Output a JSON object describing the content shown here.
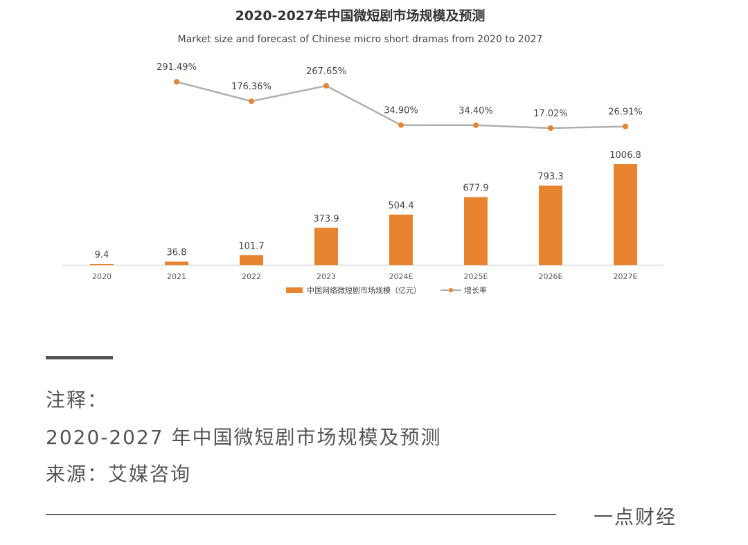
{
  "chart_data": {
    "type": "bar+line",
    "title": "2020-2027年中国微短剧市场规模及预测",
    "subtitle": "Market size and forecast of Chinese micro short dramas from 2020 to 2027",
    "categories": [
      "2020",
      "2021",
      "2022",
      "2023",
      "2024E",
      "2025E",
      "2026E",
      "2027E"
    ],
    "series": [
      {
        "name": "中国网络微短剧市场规模（亿元）",
        "type": "bar",
        "color": "#E8832F",
        "values": [
          9.4,
          36.8,
          101.7,
          373.9,
          504.4,
          677.9,
          793.3,
          1006.8
        ],
        "labels": [
          "9.4",
          "36.8",
          "101.7",
          "373.9",
          "504.4",
          "677.9",
          "793.3",
          "1006.8"
        ]
      },
      {
        "name": "增长率",
        "type": "line",
        "color": "#AFAFAF",
        "marker_color": "#E8832F",
        "values": [
          null,
          291.49,
          176.36,
          267.65,
          34.9,
          34.4,
          17.02,
          26.91
        ],
        "labels": [
          "",
          "291.49%",
          "176.36%",
          "267.65%",
          "34.90%",
          "34.40%",
          "17.02%",
          "26.91%"
        ]
      }
    ],
    "legend": "bottom-center",
    "grid": false
  },
  "notes": {
    "heading": "注释：",
    "line1": "2020-2027 年中国微短剧市场规模及预测",
    "line2": "来源：艾媒咨询"
  },
  "brand": "一点财经"
}
